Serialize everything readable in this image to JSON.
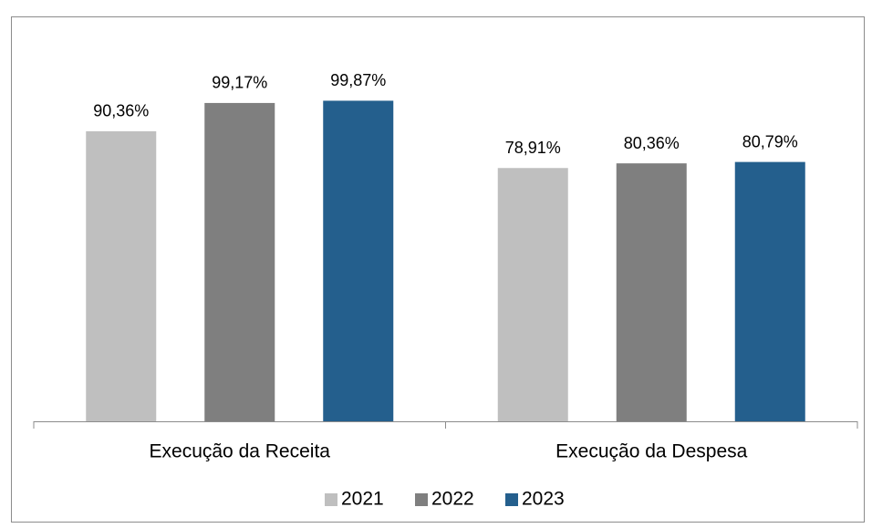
{
  "chart_data": {
    "type": "bar",
    "categories": [
      "Execução da Receita",
      "Execução da Despesa"
    ],
    "series": [
      {
        "name": "2021",
        "color": "#bfbfbf",
        "values": [
          90.36,
          78.91
        ],
        "value_labels": [
          "90,36%",
          "78,91%"
        ]
      },
      {
        "name": "2022",
        "color": "#7f7f7f",
        "values": [
          99.17,
          80.36
        ],
        "value_labels": [
          "99,17%",
          "80,36%"
        ]
      },
      {
        "name": "2023",
        "color": "#245f8d",
        "values": [
          99.87,
          80.79
        ],
        "value_labels": [
          "99,87%",
          "80,79%"
        ]
      }
    ],
    "ylim": [
      0,
      100
    ],
    "legend": "bottom"
  }
}
